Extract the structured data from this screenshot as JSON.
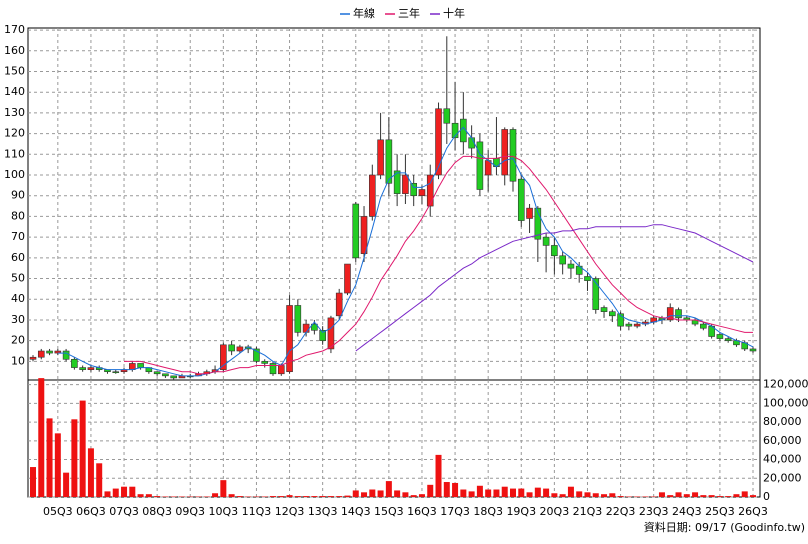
{
  "chart_data": [
    {
      "type": "candlestick",
      "categories": [
        null,
        null,
        null,
        "05Q3",
        null,
        null,
        null,
        "06Q3",
        null,
        null,
        null,
        "07Q3",
        null,
        null,
        null,
        "08Q3",
        null,
        null,
        null,
        "09Q3",
        null,
        null,
        null,
        "10Q3",
        null,
        null,
        null,
        "11Q3",
        null,
        null,
        null,
        "12Q3",
        null,
        null,
        null,
        "13Q3",
        null,
        null,
        null,
        "14Q3",
        null,
        null,
        null,
        "15Q3",
        null,
        null,
        null,
        "16Q3",
        null,
        null,
        null,
        "17Q3",
        null,
        null,
        null,
        "18Q3",
        null,
        null,
        null,
        "19Q3",
        null,
        null,
        null,
        "20Q3",
        null,
        null,
        null,
        "21Q3",
        null,
        null,
        null,
        "22Q3",
        null,
        null,
        null,
        "23Q3",
        null,
        null,
        null,
        "24Q3",
        null,
        null,
        null,
        "25Q3",
        null,
        null,
        null,
        "26Q3"
      ],
      "open": [
        11,
        12,
        15,
        14,
        15,
        11,
        7,
        6,
        7,
        6,
        5,
        5,
        6,
        9,
        7,
        5,
        4,
        3,
        2,
        3,
        3,
        4,
        5,
        6,
        18,
        15,
        17,
        16,
        10,
        9,
        4,
        5,
        37,
        24,
        28,
        25,
        16,
        32,
        43,
        86,
        62,
        80,
        100,
        117,
        102,
        91,
        96,
        90,
        85,
        100,
        132,
        125,
        127,
        118,
        116,
        100,
        108,
        100,
        122,
        98,
        79,
        84,
        70,
        66,
        61,
        57,
        56,
        51,
        50,
        36,
        34,
        33,
        28,
        27,
        28,
        29,
        31,
        30,
        35,
        31,
        30,
        28,
        27,
        23,
        21,
        20,
        19,
        16
      ],
      "high": [
        13,
        16,
        16,
        16,
        16,
        12,
        8,
        8,
        8,
        6,
        6,
        7,
        10,
        9,
        7,
        5,
        4,
        3,
        4,
        4,
        5,
        6,
        8,
        19,
        20,
        18,
        18,
        17,
        11,
        10,
        9,
        42,
        40,
        30,
        30,
        27,
        32,
        45,
        57,
        87,
        85,
        105,
        130,
        128,
        110,
        110,
        100,
        95,
        105,
        135,
        167,
        145,
        140,
        124,
        120,
        112,
        128,
        123,
        123,
        100,
        86,
        85,
        72,
        70,
        63,
        59,
        58,
        53,
        51,
        37,
        35,
        34,
        29,
        29,
        30,
        32,
        32,
        38,
        36,
        32,
        31,
        29,
        28,
        24,
        22,
        21,
        20,
        17
      ],
      "low": [
        10,
        11,
        13,
        13,
        10,
        6,
        5,
        5,
        5,
        4,
        4,
        4,
        5,
        6,
        4,
        3,
        2,
        1,
        2,
        2,
        3,
        3,
        4,
        5,
        13,
        14,
        14,
        9,
        7,
        3,
        3,
        4,
        22,
        22,
        23,
        18,
        14,
        30,
        42,
        58,
        58,
        78,
        98,
        90,
        85,
        86,
        85,
        86,
        80,
        98,
        115,
        112,
        110,
        108,
        90,
        92,
        100,
        95,
        92,
        75,
        72,
        58,
        53,
        52,
        52,
        50,
        48,
        44,
        33,
        31,
        29,
        25,
        25,
        26,
        27,
        28,
        28,
        29,
        29,
        29,
        27,
        25,
        21,
        20,
        19,
        17,
        15,
        14
      ],
      "close": [
        12,
        15,
        14,
        15,
        11,
        7,
        6,
        7,
        6,
        5,
        5,
        6,
        9,
        7,
        5,
        4,
        3,
        2,
        3,
        3,
        4,
        5,
        6,
        18,
        15,
        17,
        16,
        10,
        9,
        4,
        8,
        37,
        24,
        28,
        25,
        20,
        31,
        43,
        57,
        60,
        80,
        100,
        117,
        96,
        91,
        100,
        90,
        93,
        100,
        132,
        125,
        118,
        116,
        113,
        93,
        107,
        104,
        122,
        97,
        78,
        84,
        69,
        66,
        61,
        57,
        55,
        52,
        49,
        35,
        34,
        32,
        27,
        27,
        28,
        29,
        31,
        30,
        36,
        31,
        30,
        28,
        26,
        22,
        21,
        20,
        18,
        16,
        15
      ],
      "up_color": "#ee2020",
      "down_color": "#22cc22",
      "series": [
        {
          "name": "年線",
          "color": "#1a6fd8",
          "values": [
            null,
            null,
            null,
            14,
            14,
            12,
            10,
            8,
            7,
            6,
            6,
            6,
            6,
            7,
            7,
            6,
            5,
            4,
            3,
            3,
            3,
            4,
            5,
            8,
            11,
            14,
            17,
            15,
            13,
            10,
            8,
            15,
            18,
            24,
            29,
            24,
            26,
            30,
            39,
            47,
            60,
            74,
            89,
            98,
            101,
            101,
            94,
            94,
            96,
            104,
            113,
            119,
            123,
            118,
            110,
            107,
            104,
            107,
            108,
            100,
            95,
            82,
            74,
            70,
            63,
            60,
            56,
            53,
            48,
            43,
            38,
            32,
            30,
            29,
            28,
            29,
            30,
            32,
            32,
            32,
            31,
            29,
            27,
            24,
            22,
            20,
            19,
            17
          ]
        },
        {
          "name": "三年",
          "color": "#e0186c",
          "values": [
            null,
            null,
            null,
            null,
            null,
            null,
            null,
            null,
            null,
            null,
            null,
            10,
            10,
            10,
            9,
            8,
            7,
            6,
            5,
            5,
            4,
            4,
            5,
            5,
            6,
            7,
            7,
            8,
            8,
            8,
            8,
            10,
            11,
            13,
            14,
            15,
            17,
            20,
            24,
            28,
            34,
            41,
            49,
            55,
            61,
            68,
            73,
            79,
            86,
            94,
            101,
            106,
            109,
            109,
            108,
            108,
            108,
            109,
            109,
            107,
            103,
            98,
            93,
            87,
            81,
            75,
            69,
            63,
            57,
            52,
            47,
            43,
            39,
            36,
            34,
            32,
            31,
            31,
            30,
            30,
            30,
            29,
            28,
            27,
            26,
            25,
            24,
            24
          ]
        },
        {
          "name": "十年",
          "color": "#7a28c8",
          "values": [
            null,
            null,
            null,
            null,
            null,
            null,
            null,
            null,
            null,
            null,
            null,
            null,
            null,
            null,
            null,
            null,
            null,
            null,
            null,
            null,
            null,
            null,
            null,
            null,
            null,
            null,
            null,
            null,
            null,
            null,
            null,
            null,
            null,
            null,
            null,
            null,
            null,
            null,
            null,
            15,
            18,
            21,
            24,
            27,
            30,
            33,
            36,
            39,
            42,
            46,
            49,
            52,
            55,
            57,
            60,
            62,
            64,
            66,
            68,
            69,
            70,
            71,
            72,
            72,
            73,
            73,
            74,
            74,
            75,
            75,
            75,
            75,
            75,
            75,
            75,
            76,
            76,
            75,
            74,
            73,
            72,
            70,
            68,
            66,
            64,
            62,
            60,
            58
          ]
        }
      ],
      "ylim": [
        1,
        171
      ],
      "yticks": [
        10,
        20,
        30,
        40,
        50,
        60,
        70,
        80,
        90,
        100,
        110,
        120,
        130,
        140,
        150,
        160,
        170
      ],
      "grid": true,
      "legend": "top"
    },
    {
      "type": "bar",
      "color": "#ee1111",
      "values": [
        32000,
        127000,
        84000,
        68000,
        26000,
        83000,
        103000,
        52000,
        36000,
        6000,
        9000,
        11000,
        11000,
        3000,
        3000,
        1000,
        500,
        500,
        500,
        500,
        500,
        500,
        4000,
        18000,
        3000,
        1000,
        500,
        500,
        500,
        1000,
        1000,
        2000,
        1000,
        1000,
        1000,
        1000,
        1000,
        1000,
        1500,
        7000,
        5000,
        8000,
        7000,
        17000,
        7000,
        5000,
        2000,
        3000,
        13000,
        45000,
        16000,
        15000,
        8000,
        6000,
        12000,
        8000,
        8000,
        11000,
        9000,
        9000,
        5000,
        10000,
        9000,
        4000,
        3000,
        11000,
        6000,
        5000,
        4000,
        3000,
        4000,
        1000,
        500,
        500,
        500,
        500,
        5000,
        2000,
        5000,
        3000,
        5000,
        2000,
        2000,
        1000,
        1000,
        3000,
        6000,
        2000
      ],
      "y2lim": [
        0,
        125000
      ],
      "y2ticks": [
        0,
        {
          "value": 20000,
          "label": "20,000"
        },
        {
          "value": 40000,
          "label": "40,000"
        },
        {
          "value": 60000,
          "label": "60,000"
        },
        {
          "value": 80000,
          "label": "80,000"
        },
        {
          "value": 100000,
          "label": "100,000"
        },
        {
          "value": 120000,
          "label": "120,000"
        }
      ],
      "grid": true
    }
  ],
  "footer": "資料日期: 09/17 (Goodinfo.tw)"
}
